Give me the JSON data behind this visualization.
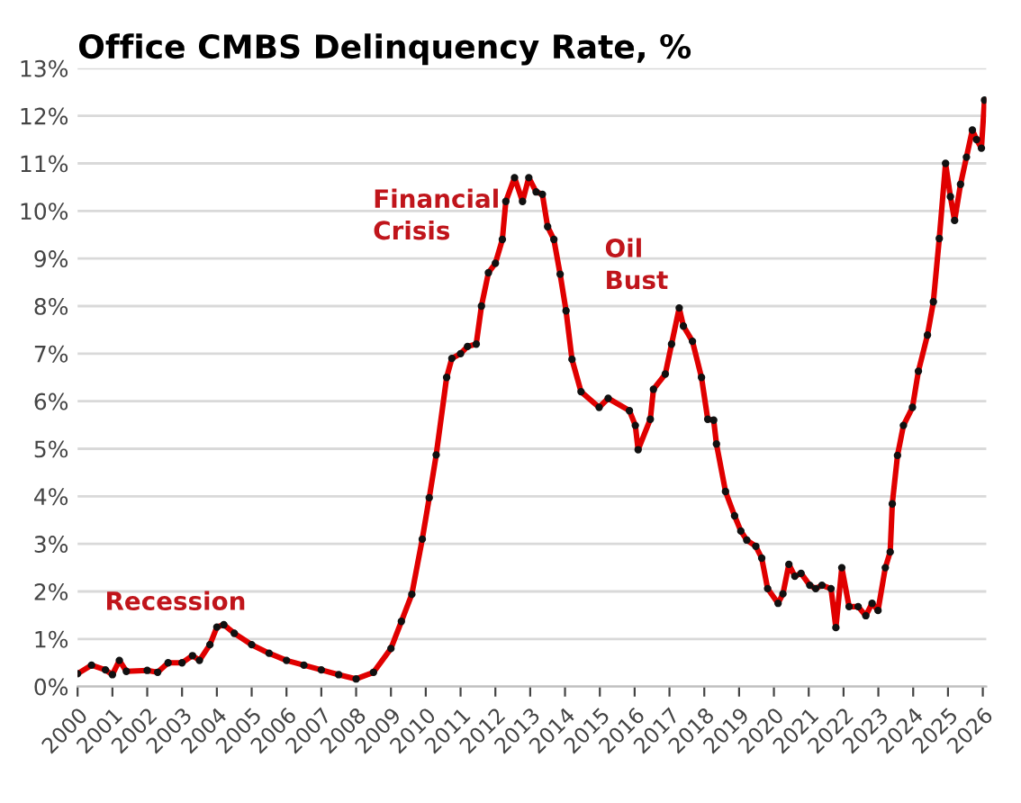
{
  "chart_data": {
    "type": "line",
    "title": "Office CMBS Delinquency Rate, %",
    "x": [
      2000.0,
      2000.4,
      2000.8,
      2001.0,
      2001.2,
      2001.4,
      2002.0,
      2002.3,
      2002.6,
      2003.0,
      2003.3,
      2003.5,
      2003.8,
      2004.0,
      2004.2,
      2004.5,
      2005.0,
      2005.5,
      2006.0,
      2006.5,
      2007.0,
      2007.5,
      2008.0,
      2008.5,
      2009.0,
      2009.3,
      2009.6,
      2009.9,
      2010.1,
      2010.3,
      2010.6,
      2010.75,
      2011.0,
      2011.2,
      2011.45,
      2011.6,
      2011.8,
      2012.0,
      2012.2,
      2012.3,
      2012.55,
      2012.78,
      2012.96,
      2013.17,
      2013.35,
      2013.5,
      2013.68,
      2013.86,
      2014.03,
      2014.2,
      2014.46,
      2014.98,
      2015.24,
      2015.85,
      2016.02,
      2016.1,
      2016.45,
      2016.54,
      2016.88,
      2017.06,
      2017.28,
      2017.4,
      2017.66,
      2017.92,
      2018.1,
      2018.27,
      2018.35,
      2018.61,
      2018.87,
      2019.05,
      2019.22,
      2019.48,
      2019.65,
      2019.82,
      2020.12,
      2020.26,
      2020.43,
      2020.6,
      2020.78,
      2021.03,
      2021.2,
      2021.38,
      2021.64,
      2021.78,
      2021.95,
      2022.16,
      2022.42,
      2022.64,
      2022.82,
      2022.99,
      2023.2,
      2023.34,
      2023.4,
      2023.55,
      2023.72,
      2023.98,
      2024.15,
      2024.41,
      2024.58,
      2024.75,
      2024.93,
      2025.07,
      2025.19,
      2025.36,
      2025.53,
      2025.7,
      2025.82,
      2025.96,
      2026.05
    ],
    "series": [
      {
        "color": "#e00000",
        "values": [
          0.27,
          0.45,
          0.35,
          0.25,
          0.55,
          0.32,
          0.34,
          0.3,
          0.5,
          0.5,
          0.65,
          0.55,
          0.88,
          1.25,
          1.3,
          1.12,
          0.88,
          0.7,
          0.55,
          0.45,
          0.35,
          0.25,
          0.16,
          0.3,
          0.8,
          1.37,
          1.94,
          3.1,
          3.97,
          4.87,
          6.5,
          6.9,
          7.0,
          7.15,
          7.2,
          8.0,
          8.7,
          8.9,
          9.4,
          10.2,
          10.7,
          10.2,
          10.7,
          10.4,
          10.35,
          9.67,
          9.4,
          8.67,
          7.9,
          6.88,
          6.2,
          5.87,
          6.06,
          5.8,
          5.49,
          4.98,
          5.62,
          6.25,
          6.57,
          7.2,
          7.96,
          7.58,
          7.26,
          6.5,
          5.62,
          5.6,
          5.1,
          4.1,
          3.59,
          3.27,
          3.08,
          2.95,
          2.7,
          2.06,
          1.75,
          1.95,
          2.57,
          2.32,
          2.38,
          2.13,
          2.06,
          2.13,
          2.06,
          1.24,
          2.5,
          1.68,
          1.68,
          1.49,
          1.75,
          1.6,
          2.5,
          2.83,
          3.84,
          4.86,
          5.49,
          5.87,
          6.63,
          7.39,
          8.09,
          9.42,
          11.0,
          10.3,
          9.8,
          10.56,
          11.13,
          11.7,
          11.5,
          11.32,
          12.33
        ]
      }
    ],
    "xlim": [
      2000,
      2026.1
    ],
    "xticks": [
      2000,
      2001,
      2002,
      2003,
      2004,
      2005,
      2006,
      2007,
      2008,
      2009,
      2010,
      2011,
      2012,
      2013,
      2014,
      2015,
      2016,
      2017,
      2018,
      2019,
      2020,
      2021,
      2022,
      2023,
      2024,
      2025,
      2026
    ],
    "ylim": [
      0,
      13
    ],
    "yticks": [
      {
        "value": 0,
        "label": "0%"
      },
      {
        "value": 1,
        "label": "1%"
      },
      {
        "value": 2,
        "label": "2%"
      },
      {
        "value": 3,
        "label": "3%"
      },
      {
        "value": 4,
        "label": "4%"
      },
      {
        "value": 5,
        "label": "5%"
      },
      {
        "value": 6,
        "label": "6%"
      },
      {
        "value": 7,
        "label": "7%"
      },
      {
        "value": 8,
        "label": "8%"
      },
      {
        "value": 9,
        "label": "9%"
      },
      {
        "value": 10,
        "label": "10%"
      },
      {
        "value": 11,
        "label": "11%"
      },
      {
        "value": 12,
        "label": "12%"
      },
      {
        "value": 13,
        "label": "13%"
      }
    ],
    "grid": "y",
    "marker": "circle",
    "line_style": "solid",
    "annotations": [
      "Recession",
      "Financial\nCrisis",
      "Oil\nBust"
    ]
  }
}
